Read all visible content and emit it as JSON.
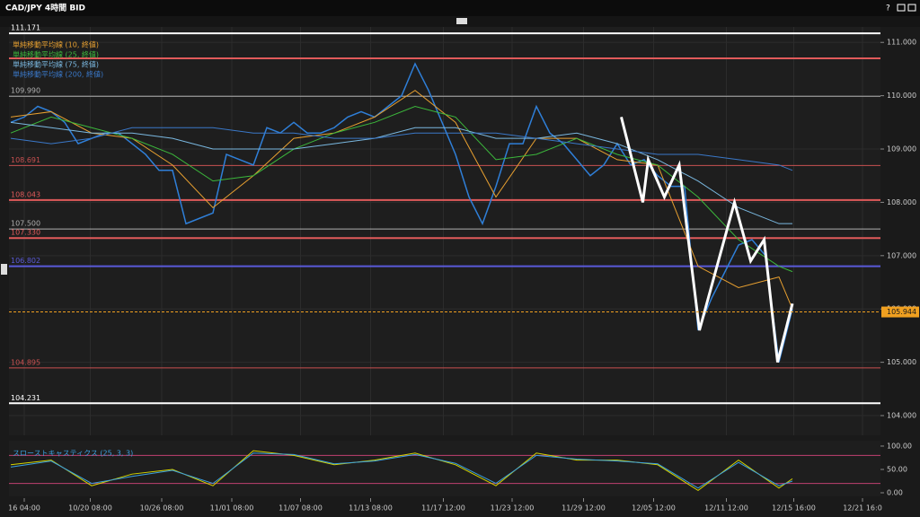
{
  "window_title": "CAD/JPY 4時間 BID",
  "chart_data": [
    {
      "type": "line",
      "grid": true,
      "xlim": [
        0,
        64
      ],
      "ylim": [
        103.63,
        111.29
      ],
      "xticks": [
        {
          "value": 1,
          "label": "16 04:00"
        },
        {
          "value": 5.9,
          "label": "10/20 08:00"
        },
        {
          "value": 11.2,
          "label": "10/26 08:00"
        },
        {
          "value": 16.4,
          "label": "11/01 08:00"
        },
        {
          "value": 21.5,
          "label": "11/07 08:00"
        },
        {
          "value": 26.7,
          "label": "11/13 08:00"
        },
        {
          "value": 32.1,
          "label": "11/17 12:00"
        },
        {
          "value": 37.2,
          "label": "11/23 12:00"
        },
        {
          "value": 42.5,
          "label": "11/29 12:00"
        },
        {
          "value": 47.7,
          "label": "12/05 12:00"
        },
        {
          "value": 53.1,
          "label": "12/11 12:00"
        },
        {
          "value": 58.1,
          "label": "12/15 16:00"
        },
        {
          "value": 63.2,
          "label": "12/21 16:0"
        }
      ],
      "yticks": [
        {
          "value": 104,
          "label": "104.000"
        },
        {
          "value": 105,
          "label": "105.000"
        },
        {
          "value": 106,
          "label": "106.000"
        },
        {
          "value": 107,
          "label": "107.000"
        },
        {
          "value": 108,
          "label": "108.000"
        },
        {
          "value": 109,
          "label": "109.000"
        },
        {
          "value": 110,
          "label": "110.000"
        },
        {
          "value": 111,
          "label": "111.000"
        }
      ],
      "levels": [
        {
          "value": 111.171,
          "label": "111.171",
          "color": "#ffffff",
          "width": 2
        },
        {
          "value": 110.7,
          "color": "#e05a5a",
          "width": 2
        },
        {
          "value": 109.99,
          "label": "109.990",
          "color": "#b0b0b0",
          "width": 1
        },
        {
          "value": 108.691,
          "label": "108.691",
          "color": "#c85050",
          "width": 1
        },
        {
          "value": 108.043,
          "label": "108.043",
          "color": "#e05a5a",
          "width": 2
        },
        {
          "value": 107.5,
          "label": "107.500",
          "color": "#b0b0b0",
          "width": 1
        },
        {
          "value": 107.33,
          "label": "107.330",
          "color": "#e05a5a",
          "width": 2
        },
        {
          "value": 106.802,
          "label": "106.802",
          "color": "#5a5ad8",
          "width": 2
        },
        {
          "value": 104.895,
          "label": "104.895",
          "color": "#c85050",
          "width": 1
        },
        {
          "value": 104.231,
          "label": "104.231",
          "color": "#ffffff",
          "width": 2
        }
      ],
      "current_price": {
        "value": 105.944,
        "label": "105.944",
        "color": "#f0a020"
      },
      "price": {
        "color": "#2f7fd8",
        "values": [
          109.5,
          109.6,
          109.8,
          109.7,
          109.5,
          109.1,
          109.2,
          109.3,
          109.3,
          109.1,
          108.9,
          108.6,
          108.6,
          107.6,
          107.7,
          107.8,
          108.9,
          108.8,
          108.7,
          109.4,
          109.3,
          109.5,
          109.3,
          109.3,
          109.4,
          109.6,
          109.7,
          109.6,
          109.8,
          110.0,
          110.6,
          110.1,
          109.5,
          108.9,
          108.1,
          107.6,
          108.3,
          109.1,
          109.1,
          109.8,
          109.3,
          109.1,
          108.8,
          108.5,
          108.7,
          109.1,
          108.7,
          108.8,
          108.5,
          108.3,
          108.3,
          105.6,
          106.2,
          106.7,
          107.2,
          107.3,
          107.0,
          105.0,
          106.0
        ]
      },
      "series": [
        {
          "name": "単純移動平均線 (10, 終値)",
          "color": "#e8a030",
          "x": [
            0,
            3,
            6,
            9,
            12,
            15,
            18,
            21,
            24,
            27,
            30,
            33,
            36,
            39,
            42,
            45,
            48,
            51,
            54,
            57,
            58
          ],
          "values": [
            109.6,
            109.7,
            109.3,
            109.2,
            108.7,
            107.9,
            108.5,
            109.2,
            109.3,
            109.6,
            110.1,
            109.5,
            108.1,
            109.2,
            109.2,
            108.8,
            108.7,
            106.8,
            106.4,
            106.6,
            106.0
          ]
        },
        {
          "name": "単純移動平均線 (25, 終値)",
          "color": "#3cb83c",
          "x": [
            0,
            3,
            6,
            9,
            12,
            15,
            18,
            21,
            24,
            27,
            30,
            33,
            36,
            39,
            42,
            45,
            48,
            51,
            54,
            57,
            58
          ],
          "values": [
            109.3,
            109.6,
            109.4,
            109.2,
            108.9,
            108.4,
            108.5,
            109.0,
            109.3,
            109.5,
            109.8,
            109.6,
            108.8,
            108.9,
            109.2,
            108.9,
            108.7,
            108.1,
            107.3,
            106.8,
            106.7
          ]
        },
        {
          "name": "単純移動平均線 (75, 終値)",
          "color": "#7ab8e0",
          "x": [
            0,
            3,
            6,
            9,
            12,
            15,
            18,
            21,
            24,
            27,
            30,
            33,
            36,
            39,
            42,
            45,
            48,
            51,
            54,
            57,
            58
          ],
          "values": [
            109.5,
            109.4,
            109.3,
            109.3,
            109.2,
            109.0,
            109.0,
            109.0,
            109.1,
            109.2,
            109.4,
            109.4,
            109.2,
            109.2,
            109.3,
            109.1,
            108.8,
            108.4,
            107.9,
            107.6,
            107.6
          ]
        },
        {
          "name": "単純移動平均線 (200, 終値)",
          "color": "#3a78c8",
          "x": [
            0,
            3,
            6,
            9,
            12,
            15,
            18,
            21,
            24,
            27,
            30,
            33,
            36,
            39,
            42,
            45,
            48,
            51,
            54,
            57,
            58
          ],
          "values": [
            109.2,
            109.1,
            109.2,
            109.4,
            109.4,
            109.4,
            109.3,
            109.3,
            109.2,
            109.2,
            109.3,
            109.3,
            109.3,
            109.2,
            109.1,
            109.0,
            108.9,
            108.9,
            108.8,
            108.7,
            108.6
          ]
        }
      ],
      "drawing": {
        "color": "#ffffff",
        "x": [
          45.3,
          46.9,
          47.3,
          48.5,
          49.6,
          51.1,
          53.7,
          54.9,
          55.9,
          56.9,
          58
        ],
        "values": [
          109.6,
          108.0,
          108.8,
          108.1,
          108.7,
          105.6,
          108.0,
          106.9,
          107.3,
          105.0,
          106.1
        ]
      }
    },
    {
      "type": "line",
      "title": "スローストキャスティクス (25, 3, 3)",
      "xlim": [
        0,
        64
      ],
      "ylim": [
        -7.7,
        111.5
      ],
      "yticks": [
        {
          "value": 0,
          "label": "0.00"
        },
        {
          "value": 50,
          "label": "50.00"
        },
        {
          "value": 100,
          "label": "100.00"
        }
      ],
      "levels": [
        {
          "value": 80,
          "color": "#c04070",
          "width": 1
        },
        {
          "value": 20,
          "color": "#c04070",
          "width": 1
        }
      ],
      "series": [
        {
          "color": "#d4d400",
          "x": [
            0,
            3,
            6,
            9,
            12,
            15,
            18,
            21,
            24,
            27,
            30,
            33,
            36,
            39,
            42,
            45,
            48,
            51,
            54,
            57,
            58
          ],
          "values": [
            60,
            70,
            15,
            40,
            50,
            15,
            90,
            80,
            60,
            70,
            85,
            60,
            15,
            85,
            70,
            70,
            60,
            5,
            70,
            10,
            30
          ]
        },
        {
          "color": "#3aa0e0",
          "x": [
            0,
            3,
            6,
            9,
            12,
            15,
            18,
            21,
            24,
            27,
            30,
            33,
            36,
            39,
            42,
            45,
            48,
            51,
            54,
            57,
            58
          ],
          "values": [
            55,
            68,
            20,
            35,
            48,
            20,
            85,
            82,
            62,
            68,
            82,
            63,
            20,
            80,
            72,
            68,
            62,
            10,
            65,
            15,
            25
          ]
        }
      ]
    }
  ]
}
